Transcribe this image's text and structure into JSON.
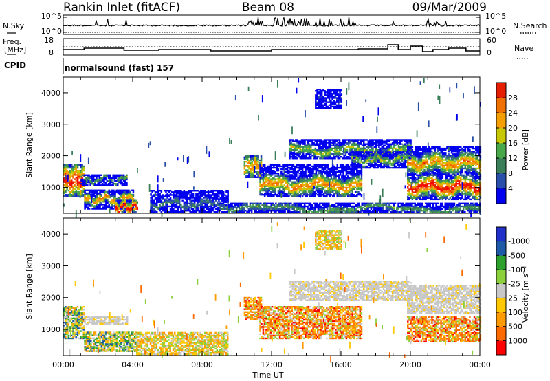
{
  "header": {
    "station": "Rankin Inlet (fitACF)",
    "beam": "Beam 08",
    "date": "09/Mar/2009"
  },
  "top_panel": {
    "left_label": "N.Sky",
    "right_label": "N.Search",
    "left_ticks": [
      "10^5",
      "10^0"
    ],
    "right_ticks": [
      "10^5",
      "10^0"
    ]
  },
  "freq_panel": {
    "left_label_1": "Freq.",
    "left_label_2": "[MHz]",
    "right_label": "Nave",
    "left_ticks": [
      "18",
      "8"
    ],
    "right_ticks": [
      "60",
      "0"
    ]
  },
  "cpid": {
    "label": "CPID",
    "text": "normalsound (fast) 157"
  },
  "colors": {
    "power": [
      "#0000ee",
      "#2a4faa",
      "#3a7f5a",
      "#49a84a",
      "#c8c800",
      "#f5a000",
      "#f07000",
      "#e61e00",
      "#ff0000"
    ],
    "velocity": [
      "#ff0000",
      "#ff6a00",
      "#ff9a00",
      "#ffc800",
      "#c8c8c8",
      "#8ccf3c",
      "#2ea02e",
      "#1e5aa8",
      "#2030c8"
    ]
  },
  "chart_data": [
    {
      "type": "heatmap",
      "name": "power",
      "ylabel": "Slant Range [km]",
      "xlabel": "",
      "xlim": [
        0,
        24
      ],
      "ylim": [
        180,
        4500
      ],
      "yticks": [
        "1000",
        "2000",
        "3000",
        "4000"
      ],
      "xticks": [
        "00:00",
        "04:00",
        "08:00",
        "12:00",
        "16:00",
        "20:00",
        "00:00"
      ],
      "colorbar_label": "Power [dB]",
      "colorbar_ticks": [
        "4",
        "8",
        "12",
        "16",
        "20",
        "24",
        "28"
      ],
      "bands": [
        {
          "t0": 0.0,
          "t1": 1.2,
          "r0": 700,
          "r1": 1700,
          "peak": 1200,
          "width": 300,
          "level": 8
        },
        {
          "t0": 1.0,
          "t1": 3.7,
          "r0": 1050,
          "r1": 1400,
          "peak": 1230,
          "width": 120,
          "level": 3
        },
        {
          "t0": 1.2,
          "t1": 4.0,
          "r0": 300,
          "r1": 900,
          "peak": 600,
          "width": 120,
          "level": 6
        },
        {
          "t0": 3.0,
          "t1": 4.3,
          "r0": 200,
          "r1": 600,
          "peak": 350,
          "width": 120,
          "level": 8
        },
        {
          "t0": 5.0,
          "t1": 9.5,
          "r0": 200,
          "r1": 900,
          "peak": 450,
          "width": 250,
          "level": 2
        },
        {
          "t0": 10.4,
          "t1": 11.4,
          "r0": 1300,
          "r1": 2000,
          "peak": 1650,
          "width": 250,
          "level": 6
        },
        {
          "t0": 11.3,
          "t1": 17.2,
          "r0": 700,
          "r1": 1700,
          "peak": 1050,
          "width": 200,
          "level": 6
        },
        {
          "t0": 13.0,
          "t1": 20.0,
          "r0": 1900,
          "r1": 2500,
          "peak": 2150,
          "width": 180,
          "level": 4
        },
        {
          "t0": 16.6,
          "t1": 19.8,
          "r0": 1600,
          "r1": 2100,
          "peak": 1850,
          "width": 150,
          "level": 4
        },
        {
          "t0": 19.8,
          "t1": 24.0,
          "r0": 1400,
          "r1": 2300,
          "peak": 1750,
          "width": 220,
          "level": 6
        },
        {
          "t0": 19.8,
          "t1": 24.0,
          "r0": 600,
          "r1": 1400,
          "peak": 1000,
          "width": 180,
          "level": 8
        },
        {
          "t0": 14.5,
          "t1": 16.0,
          "r0": 3500,
          "r1": 4100,
          "peak": 3800,
          "width": 200,
          "level": 1
        },
        {
          "t0": 9.5,
          "t1": 24.0,
          "r0": 200,
          "r1": 500,
          "peak": 300,
          "width": 150,
          "level": 3
        }
      ]
    },
    {
      "type": "heatmap",
      "name": "velocity",
      "ylabel": "Slant Range [km]",
      "xlabel": "Time UT",
      "xlim": [
        0,
        24
      ],
      "ylim": [
        180,
        4500
      ],
      "yticks": [
        "1000",
        "2000",
        "3000",
        "4000"
      ],
      "xticks": [
        "00:00",
        "04:00",
        "08:00",
        "12:00",
        "16:00",
        "20:00",
        "00:00"
      ],
      "colorbar_label": "Velocity [m s^-1]",
      "colorbar_ticks": [
        "1000",
        "500",
        "100",
        "25",
        "-25",
        "-100",
        "-500",
        "-1000"
      ],
      "bands": [
        {
          "t0": 0.0,
          "t1": 1.2,
          "r0": 700,
          "r1": 1700,
          "kind": "mixed"
        },
        {
          "t0": 1.2,
          "t1": 3.7,
          "r0": 1150,
          "r1": 1400,
          "kind": "gray"
        },
        {
          "t0": 1.2,
          "t1": 4.2,
          "r0": 300,
          "r1": 900,
          "kind": "mixed"
        },
        {
          "t0": 4.2,
          "t1": 9.5,
          "r0": 200,
          "r1": 900,
          "kind": "sparse"
        },
        {
          "t0": 10.4,
          "t1": 11.4,
          "r0": 1300,
          "r1": 2000,
          "kind": "orange"
        },
        {
          "t0": 11.3,
          "t1": 17.2,
          "r0": 700,
          "r1": 1700,
          "kind": "orange"
        },
        {
          "t0": 13.0,
          "t1": 20.0,
          "r0": 1900,
          "r1": 2500,
          "kind": "gray"
        },
        {
          "t0": 19.8,
          "t1": 24.0,
          "r0": 1500,
          "r1": 2400,
          "kind": "gray"
        },
        {
          "t0": 19.8,
          "t1": 24.0,
          "r0": 600,
          "r1": 1400,
          "kind": "orange"
        },
        {
          "t0": 14.5,
          "t1": 16.0,
          "r0": 3500,
          "r1": 4100,
          "kind": "sparse"
        }
      ]
    }
  ]
}
